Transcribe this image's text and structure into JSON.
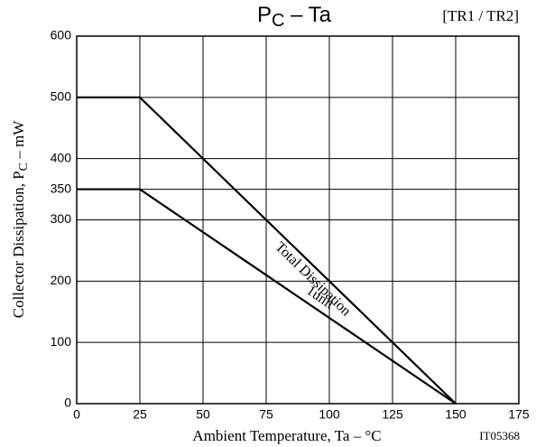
{
  "chart_data": {
    "type": "line",
    "title": {
      "main": "P",
      "sub": "C",
      "rest": " – Ta"
    },
    "subtitle": "[TR1 / TR2]",
    "x_label": "Ambient Temperature, Ta  –  °C",
    "y_label": {
      "main": "Collector Dissipation, P",
      "sub": "C",
      "rest": " – mW"
    },
    "figure_id": "IT05368",
    "x": [
      0,
      25,
      150
    ],
    "series": [
      {
        "name": "Total Dissipation",
        "color": "#000000",
        "values": [
          500,
          500,
          0
        ]
      },
      {
        "name": "1unit",
        "color": "#000000",
        "values": [
          350,
          350,
          0
        ]
      }
    ],
    "xlim": [
      0,
      175
    ],
    "xticks": [
      0,
      25,
      50,
      75,
      100,
      125,
      150,
      175
    ],
    "ylim": [
      0,
      600
    ],
    "yticks": [
      0,
      100,
      200,
      300,
      350,
      400,
      500,
      600
    ],
    "grid": true
  }
}
